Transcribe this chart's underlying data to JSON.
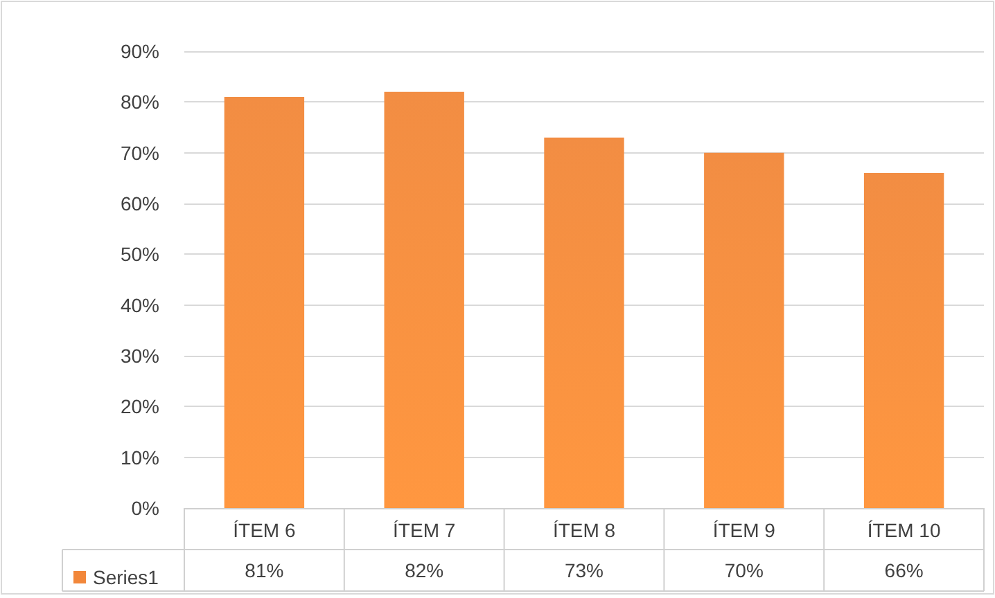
{
  "chart_data": {
    "type": "bar",
    "categories": [
      "ÍTEM 6",
      "ÍTEM 7",
      "ÍTEM 8",
      "ÍTEM 9",
      "ÍTEM 10"
    ],
    "series": [
      {
        "name": "Series1",
        "color": "#f2873a",
        "values": [
          81,
          82,
          73,
          70,
          66
        ]
      }
    ],
    "value_labels": [
      "81%",
      "82%",
      "73%",
      "70%",
      "66%"
    ],
    "ylim": [
      0,
      90
    ],
    "yticks": [
      {
        "value": 0,
        "label": "0%"
      },
      {
        "value": 10,
        "label": "10%"
      },
      {
        "value": 20,
        "label": "20%"
      },
      {
        "value": 30,
        "label": "30%"
      },
      {
        "value": 40,
        "label": "40%"
      },
      {
        "value": 50,
        "label": "50%"
      },
      {
        "value": 60,
        "label": "60%"
      },
      {
        "value": 70,
        "label": "70%"
      },
      {
        "value": 80,
        "label": "80%"
      },
      {
        "value": 90,
        "label": "90%"
      }
    ],
    "grid": "y",
    "legend": "bottom left"
  }
}
